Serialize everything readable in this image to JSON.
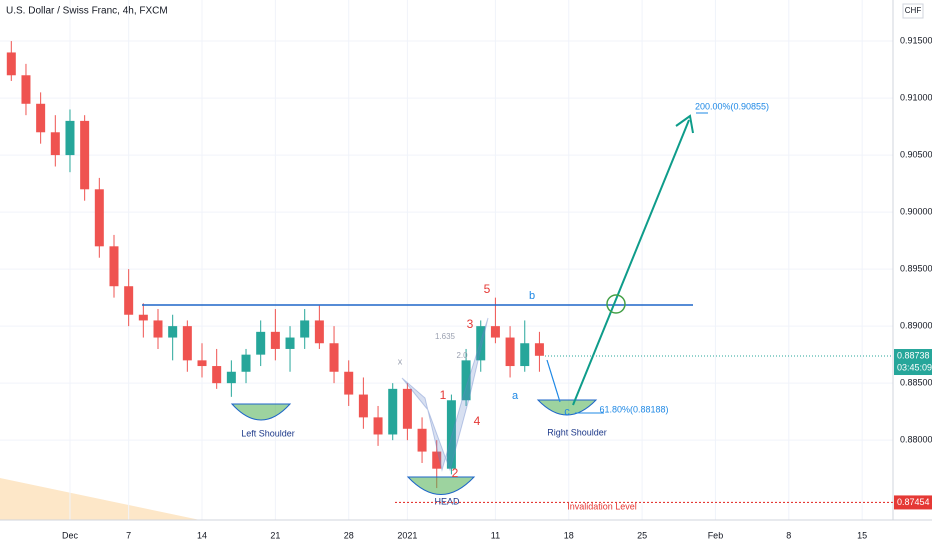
{
  "chart_data": {
    "type": "candlestick",
    "title": "U.S. Dollar / Swiss Franc, 4h, FXCM",
    "currency": "CHF",
    "categories": [
      null,
      null,
      null,
      null,
      "Dec",
      null,
      null,
      null,
      "7",
      null,
      null,
      null,
      null,
      "14",
      null,
      null,
      null,
      null,
      "21",
      null,
      null,
      null,
      null,
      "28",
      null,
      null,
      null,
      "2021",
      null,
      null,
      null,
      null,
      null,
      "11",
      null,
      null,
      null,
      null,
      "18",
      null,
      null,
      null,
      null,
      "25",
      null,
      null,
      null,
      null,
      "Feb",
      null,
      null,
      null,
      null,
      "8",
      null,
      null,
      null,
      null,
      "15",
      null
    ],
    "open": [
      0.914,
      0.912,
      0.9095,
      0.907,
      0.905,
      0.908,
      0.902,
      0.897,
      0.8935,
      0.891,
      0.8905,
      0.889,
      0.89,
      0.887,
      0.8865,
      0.885,
      0.886,
      0.8875,
      0.8895,
      0.888,
      0.889,
      0.8905,
      0.8885,
      0.886,
      0.884,
      0.882,
      0.8805,
      0.8845,
      0.881,
      0.879,
      0.8775,
      0.8835,
      0.887,
      0.89,
      0.889,
      0.8865,
      0.8885,
      null,
      null,
      null,
      null,
      null,
      null,
      null,
      null,
      null,
      null,
      null,
      null,
      null,
      null,
      null,
      null,
      null,
      null,
      null,
      null,
      null,
      null,
      null
    ],
    "high": [
      0.915,
      0.913,
      0.9105,
      0.9085,
      0.909,
      0.9085,
      0.903,
      0.898,
      0.895,
      0.892,
      0.8915,
      0.891,
      0.8905,
      0.8885,
      0.888,
      0.887,
      0.888,
      0.8905,
      0.8915,
      0.89,
      0.8915,
      0.8918,
      0.89,
      0.887,
      0.8855,
      0.883,
      0.885,
      0.885,
      0.882,
      0.88,
      0.884,
      0.888,
      0.8905,
      0.8925,
      0.89,
      0.8905,
      0.8895,
      null,
      null,
      null,
      null,
      null,
      null,
      null,
      null,
      null,
      null,
      null,
      null,
      null,
      null,
      null,
      null,
      null,
      null,
      null,
      null,
      null,
      null,
      null
    ],
    "low": [
      0.9115,
      0.9085,
      0.906,
      0.904,
      0.9035,
      0.901,
      0.896,
      0.8925,
      0.89,
      0.889,
      0.888,
      0.887,
      0.886,
      0.8855,
      0.8845,
      0.8838,
      0.885,
      0.8865,
      0.887,
      0.886,
      0.888,
      0.888,
      0.885,
      0.883,
      0.881,
      0.8795,
      0.88,
      0.88,
      0.878,
      0.8758,
      0.877,
      0.883,
      0.886,
      0.8885,
      0.8855,
      0.886,
      0.886,
      null,
      null,
      null,
      null,
      null,
      null,
      null,
      null,
      null,
      null,
      null,
      null,
      null,
      null,
      null,
      null,
      null,
      null,
      null,
      null,
      null,
      null,
      null
    ],
    "close": [
      0.912,
      0.9095,
      0.907,
      0.905,
      0.908,
      0.902,
      0.897,
      0.8935,
      0.891,
      0.8905,
      0.889,
      0.89,
      0.887,
      0.8865,
      0.885,
      0.886,
      0.8875,
      0.8895,
      0.888,
      0.889,
      0.8905,
      0.8885,
      0.886,
      0.884,
      0.882,
      0.8805,
      0.8845,
      0.881,
      0.879,
      0.8775,
      0.8835,
      0.887,
      0.89,
      0.889,
      0.8865,
      0.8885,
      0.8874,
      null,
      null,
      null,
      null,
      null,
      null,
      null,
      null,
      null,
      null,
      null,
      null,
      null,
      null,
      null,
      null,
      null,
      null,
      null,
      null,
      null,
      null,
      null
    ],
    "up_color": "#26a69a",
    "down_color": "#ef5350",
    "ylim": [
      0.873,
      0.9186
    ],
    "yticks": [
      {
        "value": 0.915,
        "label": "0.91500"
      },
      {
        "value": 0.91,
        "label": "0.91000"
      },
      {
        "value": 0.905,
        "label": "0.90500"
      },
      {
        "value": 0.9,
        "label": "0.90000"
      },
      {
        "value": 0.895,
        "label": "0.89500"
      },
      {
        "value": 0.89,
        "label": "0.89000"
      },
      {
        "value": 0.885,
        "label": "0.88500"
      },
      {
        "value": 0.88,
        "label": "0.88000"
      }
    ],
    "grid": true,
    "last_price": 0.88738,
    "countdown": "03:45:09",
    "invalidation_price": 0.87454,
    "annotations": {
      "left_shoulder": "Left Shoulder",
      "head": "HEAD",
      "right_shoulder": "Right Shoulder",
      "invalidation": "Invalidation Level",
      "target": "200.00%(0.90855)",
      "fib": "61.80%(0.88188)",
      "w5": "5",
      "wb": "b",
      "w3": "3",
      "w1": "1",
      "w4": "4",
      "w2": "2",
      "wa": "a",
      "wc": "c",
      "px": "x",
      "p1": "1.635",
      "p2": "2.0"
    }
  }
}
